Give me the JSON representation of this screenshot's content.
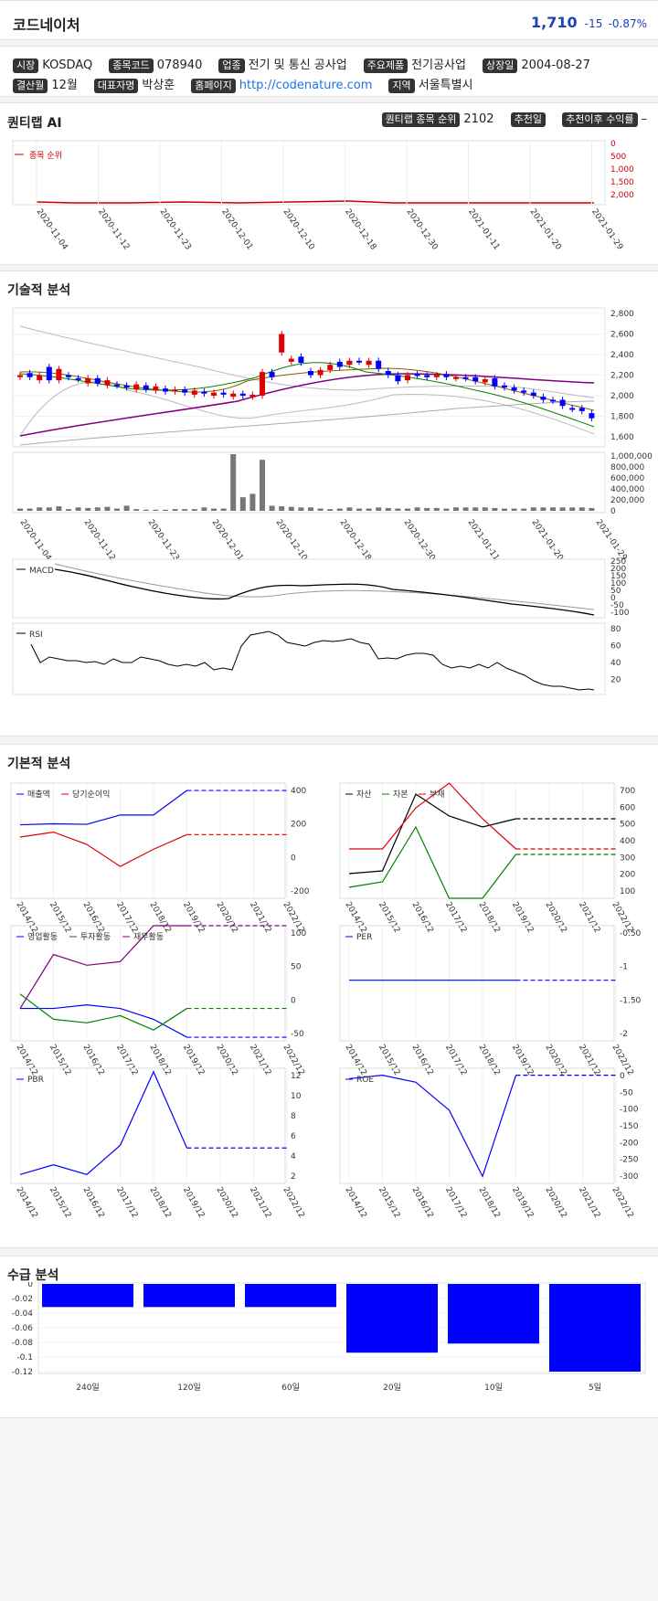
{
  "header": {
    "name": "코드네이처",
    "price": "1,710",
    "change": "-15",
    "change_pct": "-0.87%",
    "price_color": "#1f3fbf",
    "change_color": "#1f3fbf"
  },
  "info": [
    {
      "label": "시장",
      "value": "KOSDAQ"
    },
    {
      "label": "종목코드",
      "value": "078940"
    },
    {
      "label": "업종",
      "value": "전기 및 통신 공사업"
    },
    {
      "label": "주요제품",
      "value": "전기공사업"
    },
    {
      "label": "상장일",
      "value": "2004-08-27"
    },
    {
      "label": "결산월",
      "value": "12월"
    },
    {
      "label": "대표자명",
      "value": "박상훈"
    },
    {
      "label": "홈페이지",
      "value": "http://codenature.com"
    },
    {
      "label": "지역",
      "value": "서울특별시"
    }
  ],
  "quant": {
    "title": "퀀티랩 AI",
    "rank_label": "퀀티랩 종목 순위",
    "rank_value": "2102",
    "rec_date_label": "추천일",
    "rec_return_label": "추천이후 수익률",
    "rec_return_value": "–",
    "legend": "종목 순위",
    "y_ticks": [
      "0",
      "500",
      "1,000",
      "1,500",
      "2,000"
    ]
  },
  "dates": [
    "2020-11-04",
    "2020-11-12",
    "2020-11-23",
    "2020-12-01",
    "2020-12-10",
    "2020-12-18",
    "2020-12-30",
    "2021-01-11",
    "2021-01-20",
    "2021-01-29"
  ],
  "tech": {
    "title": "기술적 분석",
    "price_ticks": [
      "2,800",
      "2,600",
      "2,400",
      "2,200",
      "2,000",
      "1,800",
      "1,600"
    ],
    "vol_ticks": [
      "1,000,000",
      "800,000",
      "600,000",
      "400,000",
      "200,000",
      "0"
    ],
    "macd_legend": "MACD",
    "macd_ticks": [
      "250",
      "200",
      "150",
      "100",
      "50",
      "0",
      "-50",
      "-100"
    ],
    "rsi_legend": "RSI",
    "rsi_ticks": [
      "80",
      "60",
      "40",
      "20"
    ]
  },
  "fund": {
    "title": "기본적 분석",
    "years": [
      "2014/12",
      "2015/12",
      "2016/12",
      "2017/12",
      "2018/12",
      "2019/12",
      "2020/12",
      "2021/12",
      "2022/12"
    ],
    "c1": {
      "legend": [
        "매출액",
        "당기순이익"
      ],
      "ticks": [
        "400",
        "200",
        "0",
        "-200"
      ]
    },
    "c2": {
      "legend": [
        "자산",
        "자본",
        "부채"
      ],
      "ticks": [
        "700",
        "600",
        "500",
        "400",
        "300",
        "200",
        "100"
      ]
    },
    "c3": {
      "legend": [
        "영업활동",
        "투자활동",
        "재무활동"
      ],
      "ticks": [
        "100",
        "50",
        "0",
        "-50"
      ]
    },
    "c4": {
      "legend": [
        "PER"
      ],
      "ticks": [
        "-0.50",
        "-1",
        "-1.50",
        "-2"
      ]
    },
    "c5": {
      "legend": [
        "PBR"
      ],
      "ticks": [
        "12",
        "10",
        "8",
        "6",
        "4",
        "2"
      ]
    },
    "c6": {
      "legend": [
        "ROE"
      ],
      "ticks": [
        "0",
        "-50",
        "-100",
        "-150",
        "-200",
        "-250",
        "-300"
      ]
    }
  },
  "supply": {
    "title": "수급 분석",
    "categories": [
      "240일",
      "120일",
      "60일",
      "20일",
      "10일",
      "5일"
    ],
    "values": [
      -0.033,
      -0.033,
      -0.033,
      -0.098,
      -0.085,
      -0.125
    ],
    "ticks": [
      "0",
      "-0.02",
      "-0.04",
      "-0.06",
      "-0.08",
      "-0.1",
      "-0.12"
    ],
    "color": "#0000ff"
  },
  "colors": {
    "blue": "#0000ff",
    "red": "#e00000",
    "green": "#008000",
    "purple": "#800080",
    "rank_red": "#cc0000"
  }
}
